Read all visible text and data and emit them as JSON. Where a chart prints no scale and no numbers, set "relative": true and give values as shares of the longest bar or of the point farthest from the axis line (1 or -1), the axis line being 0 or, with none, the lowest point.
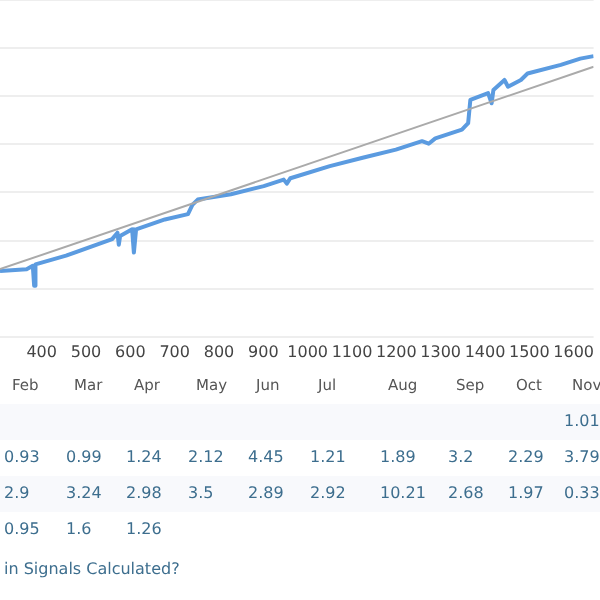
{
  "chart_data": [
    {
      "type": "line",
      "relative": true,
      "grid": "y",
      "legend": false,
      "marker": "none",
      "line_style": "solid",
      "xlim": [
        306,
        1645
      ],
      "xticks": [
        400,
        500,
        600,
        700,
        800,
        900,
        1000,
        1100,
        1200,
        1300,
        1400,
        1500,
        1600
      ],
      "series": [
        {
          "color": "#5b9be0",
          "x": [
            306,
            366,
            380,
            383,
            386,
            455,
            559,
            571,
            574,
            577,
            604,
            608,
            613,
            678,
            730,
            740,
            752,
            827,
            901,
            946,
            953,
            961,
            1050,
            1124,
            1199,
            1258,
            1273,
            1288,
            1348,
            1362,
            1367,
            1407,
            1415,
            1419,
            1444,
            1452,
            1481,
            1496,
            1571,
            1615,
            1645
          ],
          "values": [
            0.234,
            0.241,
            0.253,
            0.182,
            0.258,
            0.289,
            0.348,
            0.371,
            0.328,
            0.359,
            0.383,
            0.3,
            0.383,
            0.418,
            0.437,
            0.47,
            0.489,
            0.508,
            0.537,
            0.56,
            0.546,
            0.565,
            0.608,
            0.638,
            0.667,
            0.697,
            0.688,
            0.707,
            0.738,
            0.761,
            0.844,
            0.868,
            0.832,
            0.879,
            0.915,
            0.891,
            0.915,
            0.938,
            0.969,
            0.991,
            1.0
          ]
        },
        {
          "type": "line",
          "color": "#aaaaaa",
          "x": [
            306,
            1645
          ],
          "values": [
            0.241,
            0.962
          ]
        }
      ]
    },
    {
      "type": "other",
      "data_labels": true,
      "categories": [
        "Feb",
        "Mar",
        "Apr",
        "May",
        "Jun",
        "Jul",
        "Aug",
        "Sep",
        "Oct",
        "Nov"
      ],
      "series": [
        {
          "values": [
            null,
            null,
            null,
            null,
            null,
            null,
            null,
            null,
            null,
            1.01
          ]
        },
        {
          "values": [
            0.93,
            0.99,
            1.24,
            2.12,
            4.45,
            1.21,
            1.89,
            3.2,
            2.29,
            3.79
          ]
        },
        {
          "values": [
            2.9,
            3.24,
            2.98,
            3.5,
            2.89,
            2.92,
            10.21,
            2.68,
            1.97,
            0.33
          ]
        },
        {
          "values": [
            0.95,
            1.6,
            1.26,
            null,
            null,
            null,
            null,
            null,
            null,
            null
          ]
        }
      ],
      "annotations": [
        "in Signals Calculated?"
      ]
    }
  ]
}
